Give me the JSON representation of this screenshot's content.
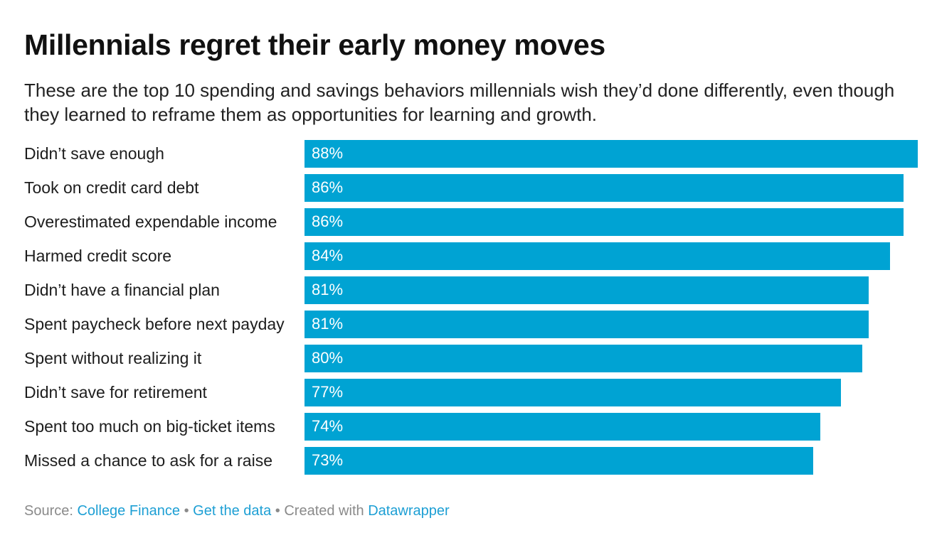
{
  "chart_data": {
    "type": "bar",
    "orientation": "horizontal",
    "title": "Millennials regret their early money moves",
    "subtitle": "These are the top 10 spending and savings behaviors millennials wish they’d done differently, even though they learned to reframe them as opportunities for learning and growth.",
    "categories": [
      "Didn’t save enough",
      "Took on credit card debt",
      "Overestimated expendable income",
      "Harmed credit score",
      "Didn’t have a financial plan",
      "Spent paycheck before next payday",
      "Spent without realizing it",
      "Didn’t save for retirement",
      "Spent too much on big-ticket items",
      "Missed a chance to ask for a raise"
    ],
    "values": [
      88,
      86,
      86,
      84,
      81,
      81,
      80,
      77,
      74,
      73
    ],
    "value_labels": [
      "88%",
      "86%",
      "86%",
      "84%",
      "81%",
      "81%",
      "80%",
      "77%",
      "74%",
      "73%"
    ],
    "xlim": [
      0,
      88
    ],
    "grid": false,
    "bar_color": "#00a3d3"
  },
  "footer": {
    "source_prefix": "Source: ",
    "source_link": "College Finance",
    "separator": " • ",
    "data_link": "Get the data",
    "created_prefix": "Created with ",
    "created_link": "Datawrapper"
  },
  "colors": {
    "link": "#1d9fd4",
    "footer_text": "#8a8a8a"
  }
}
